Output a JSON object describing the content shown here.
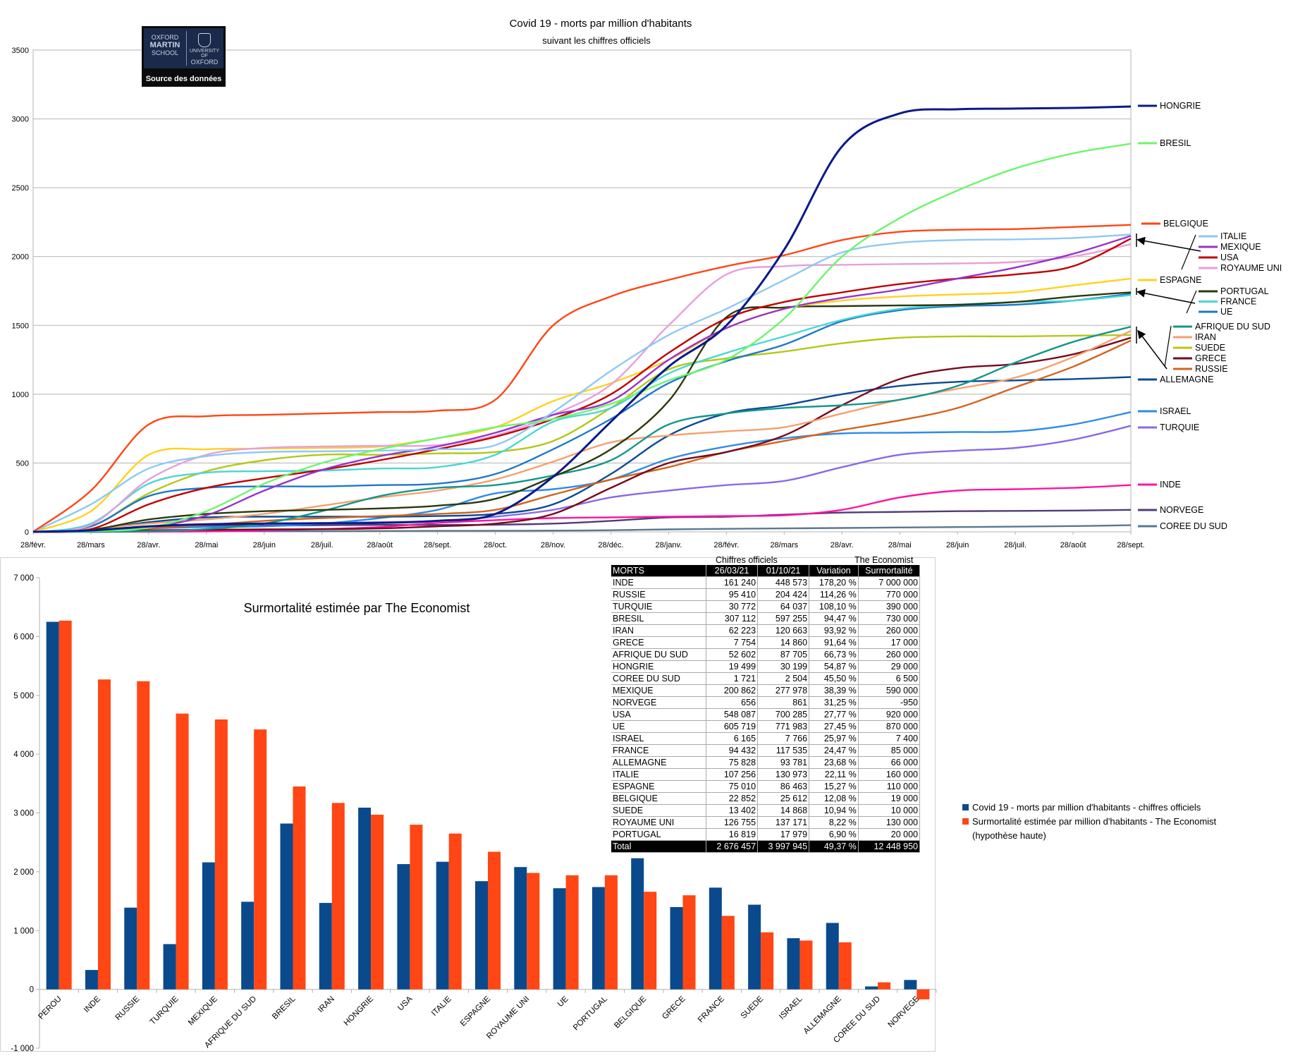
{
  "line_chart": {
    "title": "Covid 19 - morts par million d'habitants",
    "subtitle": "suivant les chiffres officiels",
    "logo": {
      "left_lines": [
        "OXFORD",
        "MARTIN",
        "SCHOOL"
      ],
      "right_lines": [
        "UNIVERSITY OF",
        "OXFORD"
      ],
      "caption": "Source des données"
    }
  },
  "table": {
    "group_headers": {
      "officiel": "Chiffres officiels",
      "economist": "The Economist"
    },
    "columns": [
      "MORTS",
      "26/03/21",
      "01/10/21",
      "Variation",
      "Surmortalité"
    ],
    "rows": [
      [
        "INDE",
        "161 240",
        "448 573",
        "178,20 %",
        "7 000 000"
      ],
      [
        "RUSSIE",
        "95 410",
        "204 424",
        "114,26 %",
        "770 000"
      ],
      [
        "TURQUIE",
        "30 772",
        "64 037",
        "108,10 %",
        "390 000"
      ],
      [
        "BRESIL",
        "307 112",
        "597 255",
        "94,47 %",
        "730 000"
      ],
      [
        "IRAN",
        "62 223",
        "120 663",
        "93,92 %",
        "260 000"
      ],
      [
        "GRECE",
        "7 754",
        "14 860",
        "91,64 %",
        "17 000"
      ],
      [
        "AFRIQUE DU SUD",
        "52 602",
        "87 705",
        "66,73 %",
        "260 000"
      ],
      [
        "HONGRIE",
        "19 499",
        "30 199",
        "54,87 %",
        "29 000"
      ],
      [
        "COREE DU SUD",
        "1 721",
        "2 504",
        "45,50 %",
        "6 500"
      ],
      [
        "MEXIQUE",
        "200 862",
        "277 978",
        "38,39 %",
        "590 000"
      ],
      [
        "NORVEGE",
        "656",
        "861",
        "31,25 %",
        "-950"
      ],
      [
        "USA",
        "548 087",
        "700 285",
        "27,77 %",
        "920 000"
      ],
      [
        "UE",
        "605 719",
        "771 983",
        "27,45 %",
        "870 000"
      ],
      [
        "ISRAEL",
        "6 165",
        "7 766",
        "25,97 %",
        "7 400"
      ],
      [
        "FRANCE",
        "94 432",
        "117 535",
        "24,47 %",
        "85 000"
      ],
      [
        "ALLEMAGNE",
        "75 828",
        "93 781",
        "23,68 %",
        "66 000"
      ],
      [
        "ITALIE",
        "107 256",
        "130 973",
        "22,11 %",
        "160 000"
      ],
      [
        "ESPAGNE",
        "75 010",
        "86 463",
        "15,27 %",
        "110 000"
      ],
      [
        "BELGIQUE",
        "22 852",
        "25 612",
        "12,08 %",
        "19 000"
      ],
      [
        "SUEDE",
        "13 402",
        "14 868",
        "10,94 %",
        "10 000"
      ],
      [
        "ROYAUME UNI",
        "126 755",
        "137 171",
        "8,22 %",
        "130 000"
      ],
      [
        "PORTUGAL",
        "16 819",
        "17 979",
        "6,90 %",
        "20 000"
      ]
    ],
    "total": [
      "Total",
      "2 676 457",
      "3 997 945",
      "49,37 %",
      "12 448 950"
    ]
  },
  "chart_data": [
    {
      "type": "line",
      "title": "Covid 19 - morts par million d'habitants",
      "subtitle": "suivant les chiffres officiels",
      "xlabel": "",
      "ylabel": "",
      "x": [
        "28/févr.",
        "28/mars",
        "28/avr.",
        "28/mai",
        "28/juin",
        "28/juil.",
        "28/août",
        "28/sept.",
        "28/oct.",
        "28/nov.",
        "28/déc.",
        "28/janv.",
        "28/févr.",
        "28/mars",
        "28/avr.",
        "28/mai",
        "28/juin",
        "28/juil.",
        "28/août",
        "28/sept."
      ],
      "ylim": [
        0,
        3500
      ],
      "yticks": [
        0,
        500,
        1000,
        1500,
        2000,
        2500,
        3000,
        3500
      ],
      "grid": true,
      "series": [
        {
          "name": "HONGRIE",
          "color": "#0a1a8a",
          "values": [
            0,
            10,
            40,
            55,
            60,
            62,
            65,
            80,
            130,
            400,
            800,
            1200,
            1500,
            2050,
            2800,
            3040,
            3070,
            3075,
            3080,
            3090
          ]
        },
        {
          "name": "BRESIL",
          "color": "#6cf56c",
          "values": [
            0,
            5,
            30,
            150,
            350,
            500,
            600,
            680,
            760,
            820,
            930,
            1100,
            1250,
            1550,
            2000,
            2280,
            2480,
            2640,
            2750,
            2820
          ]
        },
        {
          "name": "BELGIQUE",
          "color": "#ff4614",
          "values": [
            0,
            300,
            780,
            840,
            850,
            860,
            870,
            880,
            960,
            1500,
            1710,
            1830,
            1930,
            2010,
            2120,
            2180,
            2195,
            2200,
            2215,
            2230
          ]
        },
        {
          "name": "ITALIE",
          "color": "#8ec8f5",
          "values": [
            0,
            200,
            460,
            550,
            580,
            585,
            590,
            600,
            630,
            870,
            1170,
            1430,
            1620,
            1830,
            2030,
            2100,
            2120,
            2125,
            2135,
            2160
          ]
        },
        {
          "name": "MEXIQUE",
          "color": "#9932cc",
          "values": [
            0,
            5,
            30,
            120,
            300,
            450,
            550,
            620,
            720,
            850,
            950,
            1250,
            1480,
            1620,
            1700,
            1760,
            1840,
            1920,
            2020,
            2150
          ]
        },
        {
          "name": "USA",
          "color": "#c00000",
          "values": [
            0,
            20,
            200,
            320,
            390,
            450,
            520,
            600,
            690,
            820,
            1000,
            1300,
            1550,
            1670,
            1740,
            1800,
            1840,
            1870,
            1930,
            2130
          ]
        },
        {
          "name": "ROYAUME UNI",
          "color": "#e6a0dc",
          "values": [
            0,
            50,
            380,
            560,
            610,
            620,
            625,
            630,
            700,
            850,
            1070,
            1500,
            1870,
            1930,
            1940,
            1945,
            1950,
            1960,
            2000,
            2090
          ]
        },
        {
          "name": "ESPAGNE",
          "color": "#ffd21e",
          "values": [
            0,
            150,
            560,
            600,
            605,
            610,
            620,
            680,
            760,
            950,
            1080,
            1250,
            1480,
            1620,
            1680,
            1710,
            1725,
            1740,
            1790,
            1840
          ]
        },
        {
          "name": "PORTUGAL",
          "color": "#2a3a0a",
          "values": [
            0,
            15,
            90,
            130,
            150,
            160,
            170,
            190,
            240,
            400,
            600,
            950,
            1560,
            1630,
            1640,
            1645,
            1650,
            1670,
            1710,
            1740
          ]
        },
        {
          "name": "FRANCE",
          "color": "#4ad6d6",
          "values": [
            0,
            60,
            350,
            430,
            440,
            445,
            460,
            470,
            560,
            800,
            900,
            1150,
            1300,
            1420,
            1540,
            1620,
            1650,
            1670,
            1680,
            1720
          ]
        },
        {
          "name": "UE",
          "color": "#1e78c8",
          "values": [
            0,
            40,
            260,
            320,
            330,
            330,
            340,
            350,
            420,
            600,
            820,
            1080,
            1240,
            1360,
            1530,
            1610,
            1640,
            1650,
            1680,
            1730
          ]
        },
        {
          "name": "AFRIQUE DU SUD",
          "color": "#14968c",
          "values": [
            0,
            0,
            5,
            20,
            60,
            150,
            260,
            320,
            340,
            410,
            520,
            780,
            860,
            900,
            920,
            960,
            1060,
            1230,
            1380,
            1490
          ]
        },
        {
          "name": "IRAN",
          "color": "#f5a06e",
          "values": [
            0,
            20,
            60,
            90,
            130,
            190,
            250,
            300,
            380,
            510,
            650,
            700,
            730,
            760,
            860,
            960,
            1040,
            1120,
            1270,
            1460
          ]
        },
        {
          "name": "SUEDE",
          "color": "#b4c814",
          "values": [
            0,
            40,
            280,
            440,
            520,
            560,
            560,
            570,
            580,
            660,
            900,
            1180,
            1260,
            1310,
            1370,
            1410,
            1420,
            1420,
            1425,
            1430
          ]
        },
        {
          "name": "GRECE",
          "color": "#780a1e",
          "values": [
            0,
            5,
            12,
            15,
            18,
            20,
            25,
            40,
            60,
            130,
            320,
            500,
            580,
            700,
            920,
            1110,
            1190,
            1220,
            1290,
            1410
          ]
        },
        {
          "name": "RUSSIE",
          "color": "#d2641e",
          "values": [
            0,
            5,
            25,
            50,
            80,
            100,
            115,
            130,
            160,
            270,
            380,
            470,
            580,
            660,
            740,
            810,
            900,
            1050,
            1200,
            1390
          ]
        },
        {
          "name": "ALLEMAGNE",
          "color": "#0a4a96",
          "values": [
            0,
            15,
            70,
            105,
            110,
            110,
            110,
            115,
            130,
            200,
            420,
            700,
            860,
            920,
            1000,
            1060,
            1090,
            1100,
            1110,
            1125
          ]
        },
        {
          "name": "ISRAEL",
          "color": "#2d8ce6",
          "values": [
            0,
            5,
            25,
            35,
            40,
            60,
            100,
            160,
            280,
            310,
            380,
            530,
            620,
            680,
            715,
            720,
            725,
            730,
            780,
            870
          ]
        },
        {
          "name": "TURQUIE",
          "color": "#8a6ae6",
          "values": [
            0,
            5,
            30,
            55,
            60,
            65,
            70,
            80,
            110,
            160,
            250,
            300,
            340,
            370,
            470,
            560,
            590,
            610,
            670,
            770
          ]
        },
        {
          "name": "INDE",
          "color": "#ff14a0",
          "values": [
            0,
            0,
            1,
            3,
            10,
            20,
            35,
            65,
            85,
            100,
            105,
            110,
            115,
            120,
            160,
            250,
            300,
            310,
            320,
            340
          ]
        },
        {
          "name": "NORVEGE",
          "color": "#503c78",
          "values": [
            0,
            5,
            35,
            45,
            45,
            48,
            50,
            50,
            52,
            60,
            80,
            105,
            110,
            125,
            140,
            145,
            150,
            152,
            155,
            160
          ]
        },
        {
          "name": "COREE DU SUD",
          "color": "#5a7890",
          "values": [
            0,
            3,
            4,
            5,
            5,
            5,
            6,
            7,
            8,
            9,
            12,
            18,
            22,
            25,
            28,
            32,
            35,
            38,
            42,
            48
          ]
        }
      ],
      "legend_placement": "right, beside line ends",
      "legend_groups": [
        [
          "ITALIE",
          "MEXIQUE",
          "USA",
          "ROYAUME UNI"
        ],
        [
          "PORTUGAL",
          "FRANCE",
          "UE"
        ],
        [
          "AFRIQUE DU SUD",
          "IRAN",
          "SUEDE",
          "GRECE",
          "RUSSIE"
        ]
      ]
    },
    {
      "type": "bar",
      "title": "Surmortalité estimée par The Economist",
      "categories": [
        "PEROU",
        "INDE",
        "RUSSIE",
        "TURQUIE",
        "MEXIQUE",
        "AFRIQUE DU SUD",
        "BRESIL",
        "IRAN",
        "HONGRIE",
        "USA",
        "ITALIE",
        "ESPAGNE",
        "ROYAUME UNI",
        "UE",
        "PORTUGAL",
        "BELGIQUE",
        "GRECE",
        "FRANCE",
        "SUEDE",
        "ISRAEL",
        "ALLEMAGNE",
        "COREE DU SUD",
        "NORVEGE"
      ],
      "ylim": [
        -1000,
        7000
      ],
      "yticks": [
        "-1 000",
        "0",
        "1 000",
        "2 000",
        "3 000",
        "4 000",
        "5 000",
        "6 000",
        "7 000"
      ],
      "grid": false,
      "series": [
        {
          "name": "Covid 19 - morts par million d'habitants - chiffres officiels",
          "color": "#0a4a8c",
          "values": [
            6250,
            330,
            1390,
            770,
            2160,
            1490,
            2820,
            1470,
            3090,
            2130,
            2170,
            1840,
            2080,
            1720,
            1740,
            2230,
            1400,
            1730,
            1440,
            870,
            1130,
            50,
            160
          ]
        },
        {
          "name": "Surmortalité estimée par million d'habitants - The Economist (hypothèse haute)",
          "color": "#ff4614",
          "values": [
            6270,
            5270,
            5240,
            4690,
            4590,
            4420,
            3450,
            3170,
            2970,
            2800,
            2650,
            2340,
            1980,
            1940,
            1940,
            1660,
            1600,
            1250,
            970,
            830,
            800,
            120,
            -170
          ]
        }
      ],
      "legend_placement": "right",
      "legend_lines": [
        [
          "Covid 19 - morts par million d'habitants - chiffres officiels"
        ],
        [
          "Surmortalité estimée par million d'habitants - The Economist",
          "(hypothèse haute)"
        ]
      ]
    }
  ]
}
